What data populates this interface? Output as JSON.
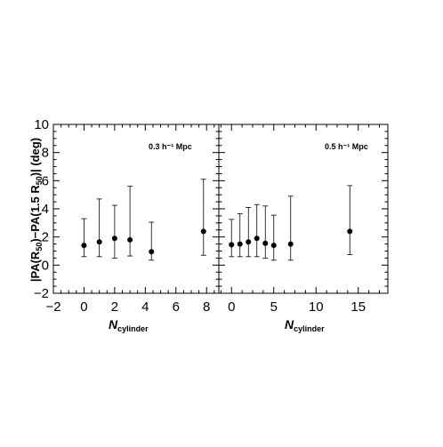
{
  "chart_data": [
    {
      "type": "scatter",
      "panel": "left",
      "annotation": "0.3 h⁻¹ Mpc",
      "xlabel": "N",
      "xlabel_sub": "cylinder",
      "ylabel": "|PA(R",
      "ylabel_full": "|PA(R₅₀)−PA(1.5 R₅₀)| (deg)",
      "xlim": [
        -2,
        8.8
      ],
      "ylim": [
        -2,
        10
      ],
      "xticks": [
        -2,
        0,
        2,
        4,
        6,
        8
      ],
      "yticks": [
        -2,
        0,
        2,
        4,
        6,
        8,
        10
      ],
      "x": [
        0,
        1,
        2,
        3,
        4.4,
        7.8
      ],
      "y": [
        1.4,
        1.65,
        1.9,
        1.8,
        0.95,
        2.4
      ],
      "y_err_low": [
        0.6,
        0.6,
        0.5,
        0.65,
        0.35,
        0.7
      ],
      "y_err_high": [
        3.3,
        4.7,
        4.25,
        5.6,
        3.05,
        6.1
      ]
    },
    {
      "type": "scatter",
      "panel": "right",
      "annotation": "0.5 h⁻¹ Mpc",
      "xlabel": "N",
      "xlabel_sub": "cylinder",
      "xlim": [
        -1.5,
        18.5
      ],
      "ylim": [
        -2,
        10
      ],
      "xticks": [
        0,
        5,
        10,
        15
      ],
      "yticks": [
        -2,
        0,
        2,
        4,
        6,
        8,
        10
      ],
      "x": [
        0,
        1,
        2,
        3,
        4,
        5,
        7,
        14
      ],
      "y": [
        1.45,
        1.5,
        1.65,
        1.9,
        1.55,
        1.4,
        1.5,
        2.4
      ],
      "y_err_low": [
        0.6,
        0.6,
        0.6,
        0.6,
        0.5,
        0.35,
        0.35,
        0.75
      ],
      "y_err_high": [
        3.25,
        3.65,
        4.1,
        4.3,
        4.2,
        3.55,
        4.9,
        5.65
      ]
    }
  ],
  "labels": {
    "ylabel_main": "|PA(R",
    "ylabel_sub1": "50",
    "ylabel_mid": ")−PA(1.5 R",
    "ylabel_sub2": "50",
    "ylabel_end": ")| (deg)",
    "xlabel_main": "N",
    "xlabel_sub": "cylinder",
    "annot_left": "0.3 h⁻¹ Mpc",
    "annot_right": "0.5 h⁻¹ Mpc"
  }
}
